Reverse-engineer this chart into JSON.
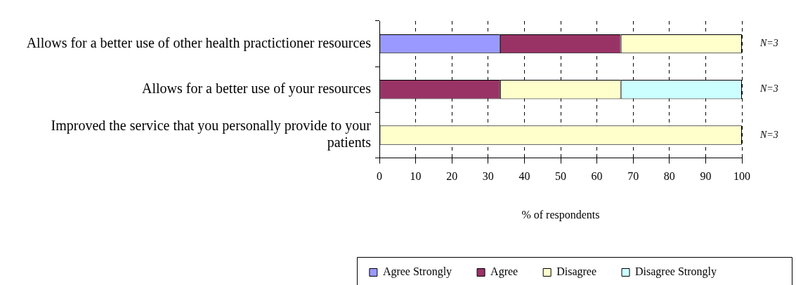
{
  "chart_data": {
    "type": "bar",
    "orientation": "horizontal",
    "stacked": true,
    "categories": [
      "Allows for a better use of other health practictioner resources",
      "Allows for a better use of your resources",
      "Improved the service that you personally provide to your patients"
    ],
    "series": [
      {
        "name": "Agree Strongly",
        "color": "#9999ff",
        "values": [
          33.3,
          0,
          0
        ]
      },
      {
        "name": "Agree",
        "color": "#993366",
        "values": [
          33.3,
          33.3,
          0
        ]
      },
      {
        "name": "Disagree",
        "color": "#ffffcc",
        "values": [
          33.4,
          33.3,
          100
        ]
      },
      {
        "name": "Disagree Strongly",
        "color": "#ccffff",
        "values": [
          0,
          33.4,
          0
        ]
      }
    ],
    "xlabel": "% of respondents",
    "xlim": [
      0,
      100
    ],
    "xticks": [
      0,
      10,
      20,
      30,
      40,
      50,
      60,
      70,
      80,
      90,
      100
    ],
    "grid": "x",
    "legend": "bottom",
    "annotations": [
      "N=3",
      "N=3",
      "N=3"
    ]
  }
}
